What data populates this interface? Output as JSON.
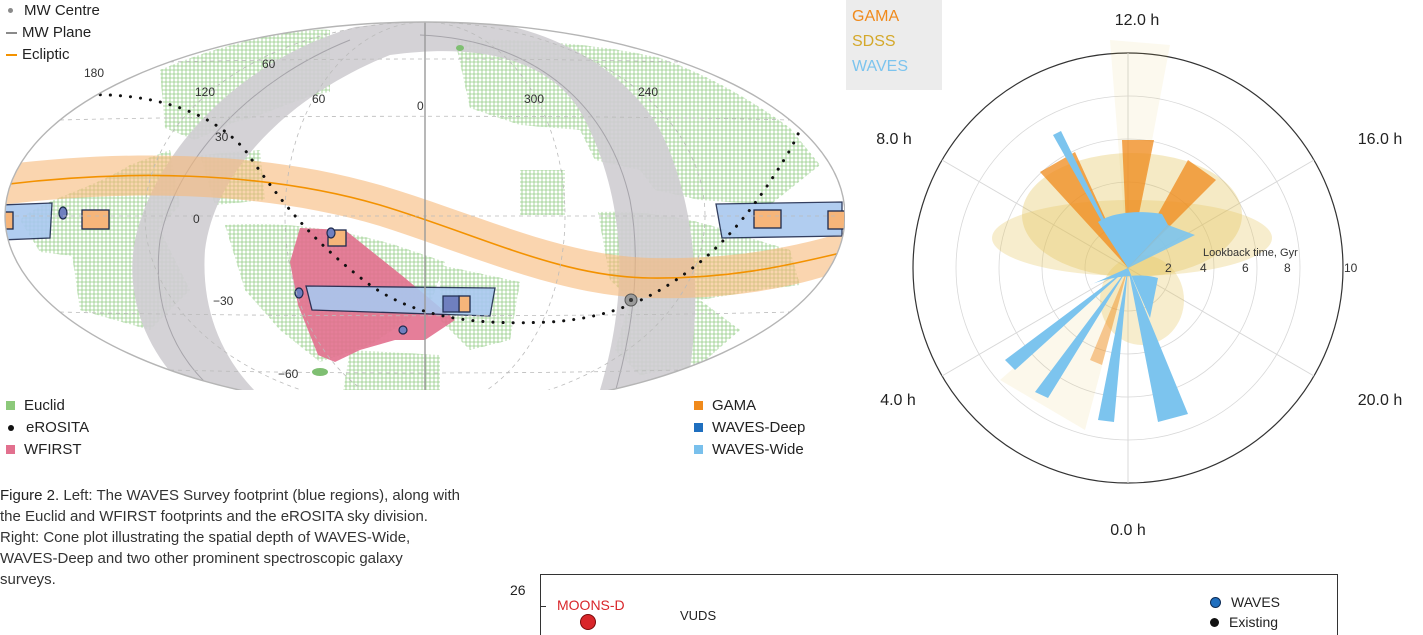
{
  "legend_top": [
    {
      "label": "MW Centre",
      "color": "#8a8a8a"
    },
    {
      "label": "MW Plane",
      "color": "#8a8a8a"
    },
    {
      "label": "Ecliptic",
      "color": "#f39200"
    }
  ],
  "sky_labels": {
    "ra": [
      "180",
      "120",
      "60",
      "0",
      "300",
      "240"
    ],
    "dec": [
      "60",
      "30",
      "0",
      "−30",
      "−60"
    ]
  },
  "legend_bottom_left": [
    {
      "label": "Euclid",
      "color": "#8cc97a",
      "shape": "square"
    },
    {
      "label": "eROSITA",
      "color": "#111111",
      "shape": "dot"
    },
    {
      "label": "WFIRST",
      "color": "#e2708e",
      "shape": "square"
    }
  ],
  "legend_bottom_right": [
    {
      "label": "GAMA",
      "color": "#f08a1c"
    },
    {
      "label": "WAVES-Deep",
      "color": "#1f6fbf"
    },
    {
      "label": "WAVES-Wide",
      "color": "#79c0ec"
    }
  ],
  "caption": {
    "lead": "Figure 2.",
    "text": " Left: The WAVES Survey footprint (blue regions), along with the Euclid and WFIRST footprints and the eROSITA sky division. Right: Cone plot illustrating the spatial depth of WAVES-Wide, WAVES-Deep and two other prominent spectroscopic galaxy surveys."
  },
  "cone_legend": [
    {
      "label": "GAMA",
      "color": "#f08a1c"
    },
    {
      "label": "SDSS",
      "color": "#d4a82a"
    },
    {
      "label": "WAVES",
      "color": "#7cc4ee"
    }
  ],
  "cone_hours": [
    "12.0 h",
    "16.0 h",
    "20.0 h",
    "0.0 h",
    "4.0 h",
    "8.0 h"
  ],
  "cone_radial": {
    "label": "Lookback time, Gyr",
    "ticks": [
      "2",
      "4",
      "6",
      "8",
      "10"
    ]
  },
  "bottom_chart": {
    "ytick": "26",
    "labels": [
      "MOONS-D",
      "VUDS"
    ],
    "legend": [
      {
        "label": "WAVES",
        "color": "#1f6fbf"
      },
      {
        "label": "Existing",
        "color": "#111111"
      }
    ]
  }
}
